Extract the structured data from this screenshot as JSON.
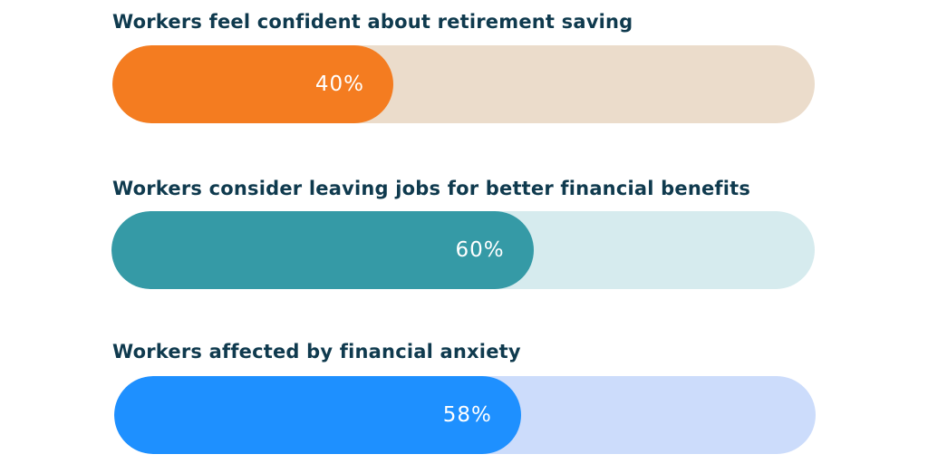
{
  "chart_data": {
    "type": "bar",
    "orientation": "horizontal",
    "categories": [
      "Workers feel confident about retirement saving",
      "Workers consider leaving jobs for better financial benefits",
      "Workers affected by financial anxiety"
    ],
    "values": [
      40,
      60,
      58
    ],
    "value_labels": [
      "40%",
      "60%",
      "58%"
    ],
    "xlim": [
      0,
      100
    ],
    "unit": "%",
    "grid": false,
    "legend": "none",
    "colors": [
      {
        "fill": "#f47c20",
        "track": "#ebdccb"
      },
      {
        "fill": "#359aa6",
        "track": "#d6ebee"
      },
      {
        "fill": "#1e90ff",
        "track": "#ccdcfb"
      }
    ]
  }
}
